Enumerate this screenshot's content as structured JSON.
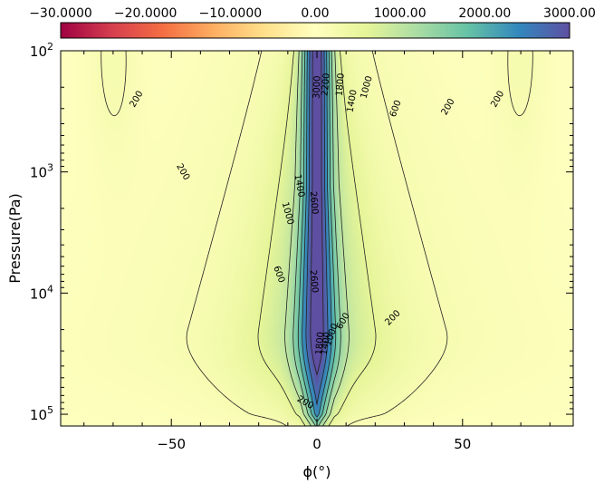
{
  "chart_data": {
    "type": "heatmap",
    "title": "",
    "xlabel": "ϕ(°)",
    "ylabel": "Pressure(Pa)",
    "xlim": [
      -88,
      88
    ],
    "ylim_pa": [
      100,
      125000
    ],
    "y_scale": "log",
    "y_reversed": true,
    "x_ticks": [
      {
        "value": -50,
        "label": "−50"
      },
      {
        "value": 0,
        "label": "0"
      },
      {
        "value": 50,
        "label": "50"
      }
    ],
    "y_ticks": [
      {
        "value": 100,
        "base": "10",
        "exp": "2"
      },
      {
        "value": 1000,
        "base": "10",
        "exp": "3"
      },
      {
        "value": 10000,
        "base": "10",
        "exp": "4"
      },
      {
        "value": 100000,
        "base": "10",
        "exp": "5"
      }
    ],
    "colorbar": {
      "tick_labels": [
        "−30.0000",
        "−20.0000",
        "−10.0000",
        "0.00",
        "1000.00",
        "2000.00",
        "3000.00"
      ],
      "colors_negative": [
        "#9e0142",
        "#d53e4f",
        "#f46d43",
        "#fdae61",
        "#fee08b",
        "#ffffbf"
      ],
      "colors_positive": [
        "#ffffbf",
        "#e6f598",
        "#abdda4",
        "#66c2a5",
        "#3288bd",
        "#5e4fa2"
      ]
    },
    "contour_levels": [
      200,
      600,
      1000,
      1400,
      1800,
      2200,
      2600,
      3000
    ],
    "contour_labels": [
      {
        "text": "200",
        "x": -62,
        "p": 250,
        "angle": -60
      },
      {
        "text": "200",
        "x": 62,
        "p": 250,
        "angle": -60
      },
      {
        "text": "200",
        "x": -46,
        "p": 1000,
        "angle": 60
      },
      {
        "text": "200",
        "x": 45,
        "p": 290,
        "angle": -60
      },
      {
        "text": "200",
        "x": 26,
        "p": 16000,
        "angle": -45
      },
      {
        "text": "200",
        "x": -4,
        "p": 80000,
        "angle": 30
      },
      {
        "text": "600",
        "x": -13,
        "p": 7000,
        "angle": 70
      },
      {
        "text": "600",
        "x": 27,
        "p": 300,
        "angle": -70
      },
      {
        "text": "600",
        "x": 9,
        "p": 17000,
        "angle": -60
      },
      {
        "text": "1000",
        "x": -10,
        "p": 2200,
        "angle": 75
      },
      {
        "text": "1000",
        "x": 17,
        "p": 200,
        "angle": -75
      },
      {
        "text": "1000",
        "x": 5,
        "p": 22000,
        "angle": -70
      },
      {
        "text": "1400",
        "x": -6,
        "p": 1300,
        "angle": 80
      },
      {
        "text": "1400",
        "x": 12,
        "p": 260,
        "angle": -80
      },
      {
        "text": "1400",
        "x": 3,
        "p": 26000,
        "angle": -80
      },
      {
        "text": "1800",
        "x": 1,
        "p": 26000,
        "angle": -85
      },
      {
        "text": "1800",
        "x": 8,
        "p": 190,
        "angle": -85
      },
      {
        "text": "2200",
        "x": 3,
        "p": 190,
        "angle": -85
      },
      {
        "text": "2600",
        "x": -1,
        "p": 1800,
        "angle": 85
      },
      {
        "text": "2600",
        "x": -1,
        "p": 8000,
        "angle": 85
      },
      {
        "text": "3000",
        "x": 0,
        "p": 200,
        "angle": -88
      }
    ]
  }
}
